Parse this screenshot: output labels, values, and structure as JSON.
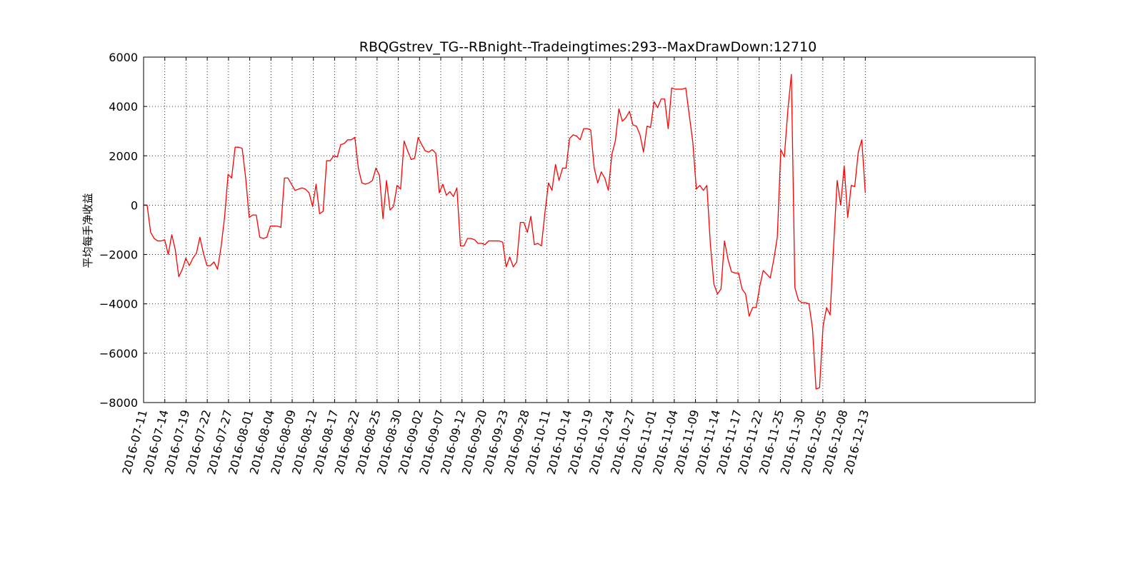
{
  "chart_data": {
    "type": "line",
    "title": "RBQGstrev_TG--RBnight--Tradeingtimes:293--MaxDrawDown:12710",
    "xlabel": "",
    "ylabel": "平均每手净收益",
    "ylim": [
      -8000,
      6000
    ],
    "yticks": [
      -8000,
      -6000,
      -4000,
      -2000,
      0,
      2000,
      4000,
      6000
    ],
    "ytick_labels": [
      "−8000",
      "−6000",
      "−4000",
      "−2000",
      "0",
      "2000",
      "4000",
      "6000"
    ],
    "xtick_labels": [
      "2016-07-11",
      "2016-07-14",
      "2016-07-19",
      "2016-07-22",
      "2016-07-27",
      "2016-08-01",
      "2016-08-04",
      "2016-08-09",
      "2016-08-12",
      "2016-08-17",
      "2016-08-22",
      "2016-08-25",
      "2016-08-30",
      "2016-09-02",
      "2016-09-07",
      "2016-09-12",
      "2016-09-20",
      "2016-09-23",
      "2016-09-28",
      "2016-10-11",
      "2016-10-14",
      "2016-10-19",
      "2016-10-24",
      "2016-10-27",
      "2016-11-01",
      "2016-11-04",
      "2016-11-09",
      "2016-11-14",
      "2016-11-17",
      "2016-11-22",
      "2016-11-25",
      "2016-11-30",
      "2016-12-05",
      "2016-12-08",
      "2016-12-13"
    ],
    "x_index_max": 42,
    "grid": true,
    "line_color": "#ff0000",
    "series": [
      {
        "values": [
          0,
          0,
          -1100,
          -1350,
          -1450,
          -1450,
          -1400,
          -2000,
          -1200,
          -1800,
          -2900,
          -2600,
          -2150,
          -2450,
          -2150,
          -1950,
          -1300,
          -1950,
          -2450,
          -2450,
          -2300,
          -2600,
          -1700,
          -500,
          1250,
          1100,
          2350,
          2350,
          2300,
          1100,
          -500,
          -400,
          -400,
          -1300,
          -1350,
          -1300,
          -850,
          -850,
          -850,
          -900,
          1100,
          1100,
          850,
          600,
          650,
          700,
          650,
          500,
          -50,
          850,
          -350,
          -250,
          1800,
          1800,
          2000,
          1950,
          2450,
          2500,
          2650,
          2650,
          2750,
          1500,
          900,
          850,
          900,
          1000,
          1500,
          1200,
          -550,
          1000,
          -200,
          -50,
          800,
          650,
          2600,
          2200,
          1850,
          1900,
          2750,
          2450,
          2200,
          2150,
          2250,
          2100,
          500,
          850,
          400,
          550,
          350,
          700,
          -1650,
          -1650,
          -1350,
          -1350,
          -1400,
          -1550,
          -1550,
          -1600,
          -1450,
          -1450,
          -1450,
          -1450,
          -1500,
          -2500,
          -2100,
          -2500,
          -2300,
          -700,
          -700,
          -1100,
          -450,
          -1600,
          -1550,
          -1650,
          -300,
          900,
          600,
          1650,
          1000,
          1500,
          1500,
          2700,
          2850,
          2800,
          2650,
          3100,
          3100,
          3050,
          1500,
          900,
          1350,
          1100,
          600,
          2050,
          2600,
          3900,
          3400,
          3550,
          3800,
          3250,
          3200,
          2850,
          2150,
          3200,
          3150,
          4200,
          3950,
          4300,
          4300,
          3100,
          4750,
          4700,
          4700,
          4700,
          4750,
          3650,
          2550,
          650,
          800,
          600,
          800,
          -1600,
          -3200,
          -3600,
          -3400,
          -1450,
          -2200,
          -2700,
          -2750,
          -2750,
          -3400,
          -3600,
          -4500,
          -4150,
          -4150,
          -3300,
          -2650,
          -2800,
          -2950,
          -2200,
          -1300,
          2250,
          1950,
          3850,
          5300,
          -3350,
          -3850,
          -3950,
          -3950,
          -4000,
          -5000,
          -7450,
          -7400,
          -4900,
          -4150,
          -4450,
          -1650,
          1000,
          0,
          1600,
          -500,
          800,
          750,
          2150,
          2650,
          500
        ]
      }
    ]
  }
}
